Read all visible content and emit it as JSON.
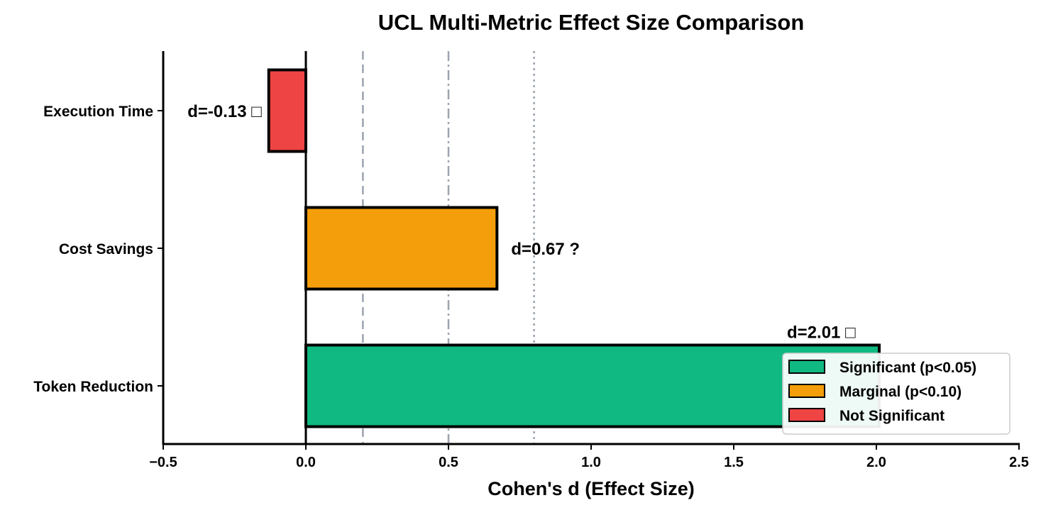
{
  "chart_data": {
    "type": "bar",
    "orientation": "horizontal",
    "title": "UCL Multi-Metric Effect Size Comparison",
    "xlabel": "Cohen's d (Effect Size)",
    "ylabel": "",
    "xlim": [
      -0.5,
      2.5
    ],
    "xticks": [
      -0.5,
      0.0,
      0.5,
      1.0,
      1.5,
      2.0,
      2.5
    ],
    "xtick_labels": [
      "−0.5",
      "0.0",
      "0.5",
      "1.0",
      "1.5",
      "2.0",
      "2.5"
    ],
    "grid": false,
    "categories": [
      "Execution Time",
      "Cost Savings",
      "Token Reduction"
    ],
    "values": [
      -0.13,
      0.67,
      2.01
    ],
    "bar_colors": [
      "#ef4444",
      "#f59e0b",
      "#10b981"
    ],
    "data_labels": [
      "d=-0.13 □",
      "d=0.67 ?",
      "d=2.01 □"
    ],
    "reference_lines": [
      {
        "x": 0.2,
        "style": "dashed",
        "color": "#9ca3af"
      },
      {
        "x": 0.5,
        "style": "dashdot",
        "color": "#9ca3af"
      },
      {
        "x": 0.8,
        "style": "dotted",
        "color": "#9ca3af"
      }
    ],
    "legend": {
      "placement": "lower-right",
      "entries": [
        {
          "label": "Significant (p<0.05)",
          "color": "#10b981"
        },
        {
          "label": "Marginal (p<0.10)",
          "color": "#f59e0b"
        },
        {
          "label": "Not Significant",
          "color": "#ef4444"
        }
      ]
    }
  }
}
